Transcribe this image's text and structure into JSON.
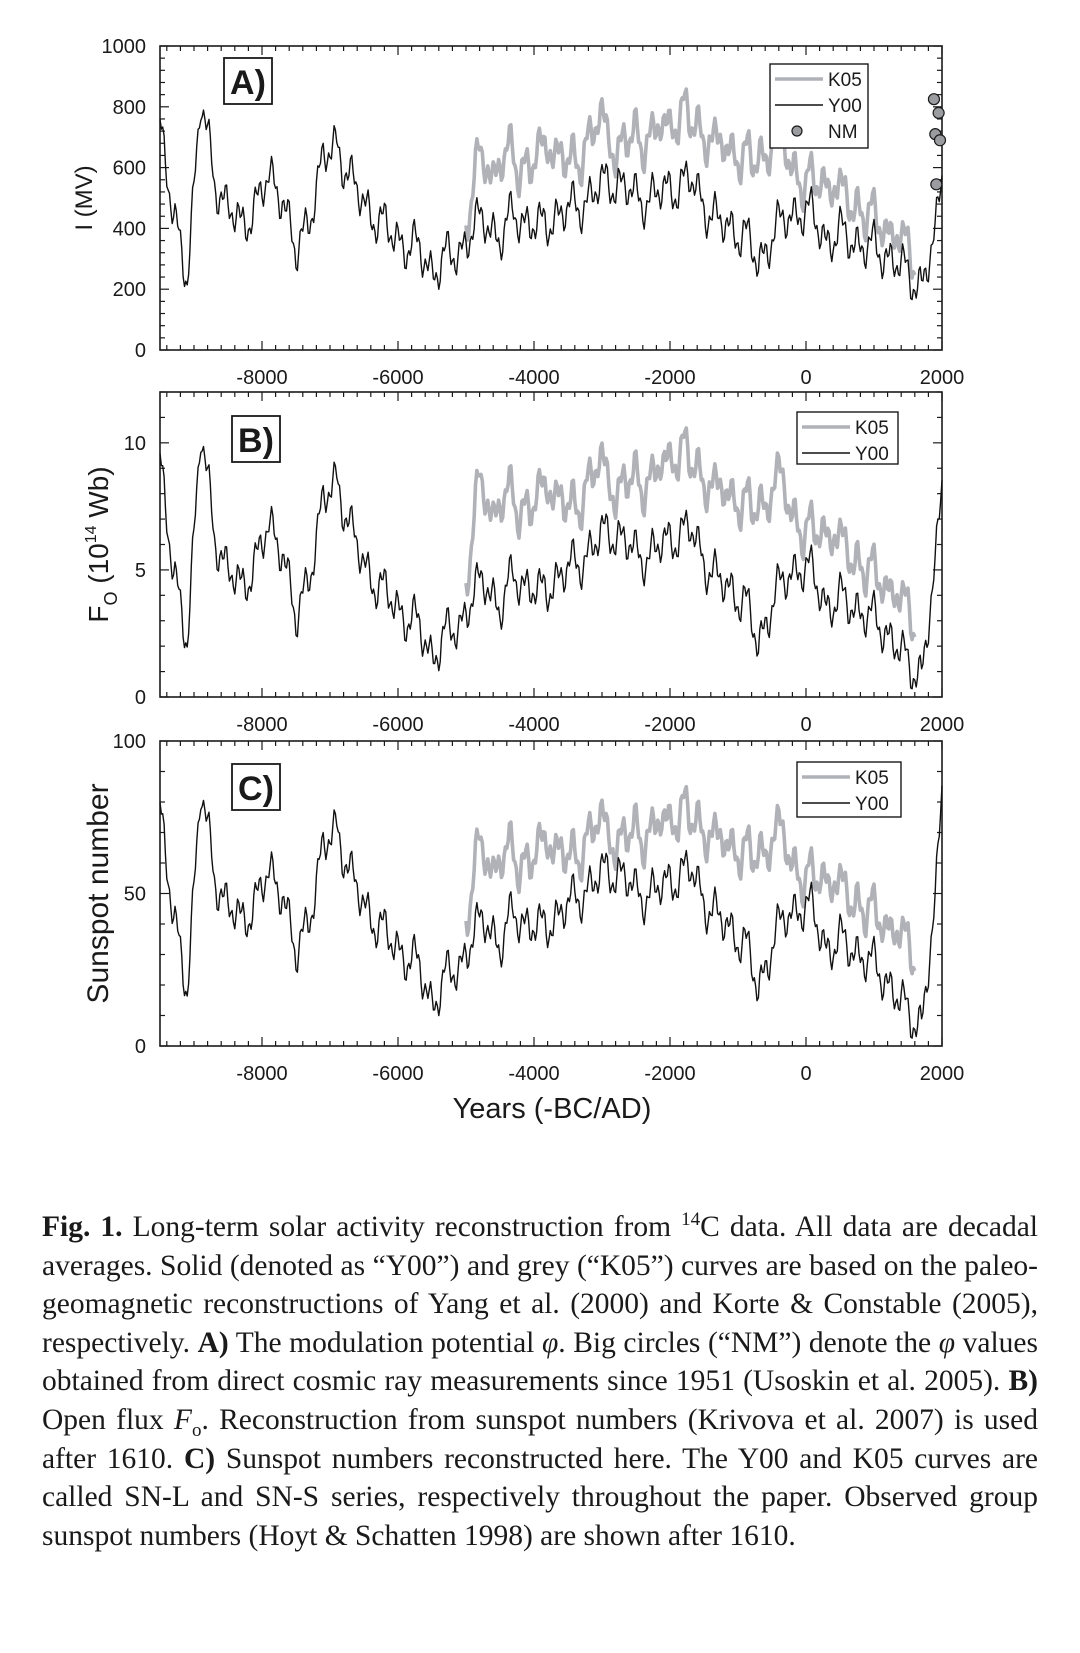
{
  "chart_data": [
    {
      "type": "line",
      "panel_label": "A)",
      "ylabel": "I (MV)",
      "ylim": [
        0,
        1000
      ],
      "yticks": [
        "0",
        "200",
        "400",
        "600",
        "800",
        "1000"
      ],
      "xlim": [
        -9500,
        2000
      ],
      "xticks": [
        "-8000",
        "-6000",
        "-4000",
        "-2000",
        "0",
        "2000"
      ],
      "legend": {
        "position": "top-right",
        "entries": [
          "K05",
          "Y00",
          "NM"
        ]
      },
      "series": [
        {
          "name": "K05",
          "color": "#b0b2b8",
          "x": [
            -5000,
            -4800,
            -4600,
            -4400,
            -4200,
            -4000,
            -3800,
            -3600,
            -3400,
            -3200,
            -3000,
            -2800,
            -2600,
            -2400,
            -2200,
            -2000,
            -1800,
            -1600,
            -1400,
            -1200,
            -1000,
            -800,
            -600,
            -400,
            -200,
            0,
            200,
            400,
            600,
            800,
            1000,
            1200,
            1400,
            1600
          ],
          "y": [
            420,
            640,
            580,
            650,
            600,
            620,
            680,
            640,
            600,
            700,
            760,
            650,
            700,
            690,
            720,
            740,
            790,
            720,
            700,
            660,
            650,
            620,
            640,
            720,
            600,
            540,
            560,
            540,
            500,
            460,
            430,
            400,
            360,
            300
          ]
        },
        {
          "name": "Y00",
          "color": "#111111",
          "x": [
            -9500,
            -9300,
            -9100,
            -8900,
            -8700,
            -8500,
            -8300,
            -8100,
            -7900,
            -7700,
            -7500,
            -7300,
            -7100,
            -6900,
            -6700,
            -6500,
            -6300,
            -6100,
            -5900,
            -5700,
            -5500,
            -5300,
            -5100,
            -4900,
            -4700,
            -4500,
            -4300,
            -4100,
            -3900,
            -3700,
            -3500,
            -3300,
            -3100,
            -2900,
            -2700,
            -2500,
            -2300,
            -2100,
            -1900,
            -1700,
            -1500,
            -1300,
            -1100,
            -900,
            -700,
            -500,
            -300,
            -100,
            100,
            300,
            500,
            700,
            900,
            1100,
            1300,
            1500,
            1700,
            1900,
            2000
          ],
          "y": [
            760,
            420,
            250,
            820,
            560,
            470,
            400,
            480,
            560,
            520,
            300,
            450,
            620,
            680,
            560,
            480,
            430,
            380,
            350,
            330,
            260,
            300,
            320,
            400,
            430,
            360,
            450,
            420,
            400,
            440,
            460,
            480,
            520,
            560,
            540,
            500,
            500,
            520,
            540,
            560,
            480,
            420,
            400,
            380,
            280,
            380,
            430,
            460,
            440,
            360,
            380,
            360,
            340,
            320,
            300,
            240,
            220,
            360,
            580
          ]
        },
        {
          "name": "NM",
          "color": "#9a9ca0",
          "x": [
            1955,
            1965,
            1975,
            1985,
            1990
          ],
          "y": [
            825,
            780,
            710,
            690,
            545
          ]
        }
      ]
    },
    {
      "type": "line",
      "panel_label": "B)",
      "ylabel": "F_O (10^14 Wb)",
      "ylim": [
        0,
        12
      ],
      "yticks": [
        "0",
        "5",
        "10"
      ],
      "xlim": [
        -9500,
        2000
      ],
      "xticks": [
        "-8000",
        "-6000",
        "-4000",
        "-2000",
        "0",
        "2000"
      ],
      "legend": {
        "position": "top-right",
        "entries": [
          "K05",
          "Y00"
        ]
      },
      "series": [
        {
          "name": "K05",
          "color": "#b0b2b8",
          "x": [
            -5000,
            -4800,
            -4600,
            -4400,
            -4200,
            -4000,
            -3800,
            -3600,
            -3400,
            -3200,
            -3000,
            -2800,
            -2600,
            -2400,
            -2200,
            -2000,
            -1800,
            -1600,
            -1400,
            -1200,
            -1000,
            -800,
            -600,
            -400,
            -200,
            0,
            200,
            400,
            600,
            800,
            1000,
            1200,
            1400,
            1600
          ],
          "y": [
            4.6,
            8.5,
            7.2,
            8.0,
            7.4,
            7.6,
            8.4,
            7.8,
            7.2,
            8.6,
            9.2,
            8.0,
            8.6,
            8.4,
            8.8,
            9.4,
            9.8,
            8.8,
            8.4,
            8.0,
            7.8,
            7.4,
            7.6,
            8.8,
            7.2,
            6.4,
            6.6,
            6.4,
            5.8,
            5.2,
            4.8,
            4.4,
            3.8,
            3.0
          ]
        },
        {
          "name": "Y00",
          "color": "#111111",
          "x": [
            -9500,
            -9300,
            -9100,
            -8900,
            -8700,
            -8500,
            -8300,
            -8100,
            -7900,
            -7700,
            -7500,
            -7300,
            -7100,
            -6900,
            -6700,
            -6500,
            -6300,
            -6100,
            -5900,
            -5700,
            -5500,
            -5300,
            -5100,
            -4900,
            -4700,
            -4500,
            -4300,
            -4100,
            -3900,
            -3700,
            -3500,
            -3300,
            -3100,
            -2900,
            -2700,
            -2500,
            -2300,
            -2100,
            -1900,
            -1700,
            -1500,
            -1300,
            -1100,
            -900,
            -700,
            -500,
            -300,
            -100,
            100,
            300,
            500,
            700,
            900,
            1100,
            1300,
            1500,
            1700,
            1900,
            2000
          ],
          "y": [
            9.6,
            4.6,
            2.4,
            10.4,
            6.4,
            5.0,
            4.2,
            5.4,
            6.6,
            6.0,
            2.8,
            5.0,
            7.6,
            8.6,
            6.6,
            5.2,
            4.4,
            3.8,
            3.2,
            2.8,
            1.6,
            2.4,
            2.8,
            4.0,
            4.6,
            3.4,
            4.8,
            4.4,
            4.0,
            4.6,
            5.0,
            5.4,
            6.0,
            6.6,
            6.2,
            5.6,
            5.6,
            6.0,
            6.4,
            6.6,
            5.4,
            4.6,
            4.2,
            3.8,
            2.0,
            3.8,
            4.6,
            5.2,
            4.8,
            3.6,
            3.8,
            3.6,
            3.2,
            2.8,
            2.2,
            1.2,
            1.0,
            4.8,
            8.6
          ]
        }
      ]
    },
    {
      "type": "line",
      "panel_label": "C)",
      "xlabel": "Years (-BC/AD)",
      "ylabel": "Sunspot number",
      "ylim": [
        0,
        100
      ],
      "yticks": [
        "0",
        "50",
        "100"
      ],
      "xlim": [
        -9500,
        2000
      ],
      "xticks": [
        "-8000",
        "-6000",
        "-4000",
        "-2000",
        "0",
        "2000"
      ],
      "legend": {
        "position": "top-right",
        "entries": [
          "K05",
          "Y00"
        ]
      },
      "series": [
        {
          "name": "K05",
          "color": "#b0b2b8",
          "x": [
            -5000,
            -4800,
            -4600,
            -4400,
            -4200,
            -4000,
            -3800,
            -3600,
            -3400,
            -3200,
            -3000,
            -2800,
            -2600,
            -2400,
            -2200,
            -2000,
            -1800,
            -1600,
            -1400,
            -1200,
            -1000,
            -800,
            -600,
            -400,
            -200,
            0,
            200,
            400,
            600,
            800,
            1000,
            1200,
            1400,
            1600
          ],
          "y": [
            42,
            66,
            58,
            64,
            60,
            62,
            68,
            64,
            60,
            70,
            74,
            66,
            70,
            69,
            72,
            74,
            78,
            72,
            70,
            66,
            65,
            62,
            64,
            72,
            60,
            54,
            56,
            54,
            50,
            46,
            43,
            40,
            36,
            30
          ]
        },
        {
          "name": "Y00",
          "color": "#111111",
          "x": [
            -9500,
            -9300,
            -9100,
            -8900,
            -8700,
            -8500,
            -8300,
            -8100,
            -7900,
            -7700,
            -7500,
            -7300,
            -7100,
            -6900,
            -6700,
            -6500,
            -6300,
            -6100,
            -5900,
            -5700,
            -5500,
            -5300,
            -5100,
            -4900,
            -4700,
            -4500,
            -4300,
            -4100,
            -3900,
            -3700,
            -3500,
            -3300,
            -3100,
            -2900,
            -2700,
            -2500,
            -2300,
            -2100,
            -1900,
            -1700,
            -1500,
            -1300,
            -1100,
            -900,
            -700,
            -500,
            -300,
            -100,
            100,
            300,
            500,
            700,
            900,
            1100,
            1300,
            1500,
            1700,
            1900,
            2000
          ],
          "y": [
            80,
            40,
            20,
            84,
            56,
            46,
            40,
            48,
            56,
            52,
            28,
            44,
            64,
            72,
            56,
            46,
            40,
            34,
            30,
            26,
            14,
            22,
            26,
            36,
            42,
            32,
            44,
            40,
            38,
            42,
            46,
            50,
            54,
            58,
            56,
            50,
            50,
            52,
            56,
            58,
            48,
            42,
            38,
            34,
            18,
            34,
            42,
            46,
            44,
            32,
            34,
            32,
            28,
            24,
            18,
            10,
            8,
            44,
            86
          ]
        }
      ]
    }
  ],
  "caption": {
    "fig_label": "Fig. 1.",
    "p1": " Long-term solar activity reconstruction from ",
    "c14_sup": "14",
    "p2": "C data. All data are decadal averages. Solid (denoted as “Y00”) and grey (“K05”) curves are based on the paleo-geomagnetic reconstructions of Yang et al. (2000) and Korte & Constable (2005), respectively. ",
    "a_label": "A)",
    "p3": " The modulation potential ",
    "phi": "φ",
    "p4": ". Big circles (“NM”) denote the ",
    "phi2": "φ",
    "p5": " values obtained from direct cosmic ray measurements since 1951 (Usoskin et al. 2005). ",
    "b_label": "B)",
    "p6": " Open flux ",
    "f_var": "F",
    "f_sub": "o",
    "p7": ". Reconstruction from sunspot numbers (Krivova et al. 2007) is used after 1610. ",
    "c_label": "C)",
    "p8": " Sunspot numbers reconstructed here. The Y00 and K05 curves are called SN-L and SN-S series, respectively throughout the paper. Observed group sunspot numbers (Hoyt & Schatten 1998) are shown after 1610."
  }
}
